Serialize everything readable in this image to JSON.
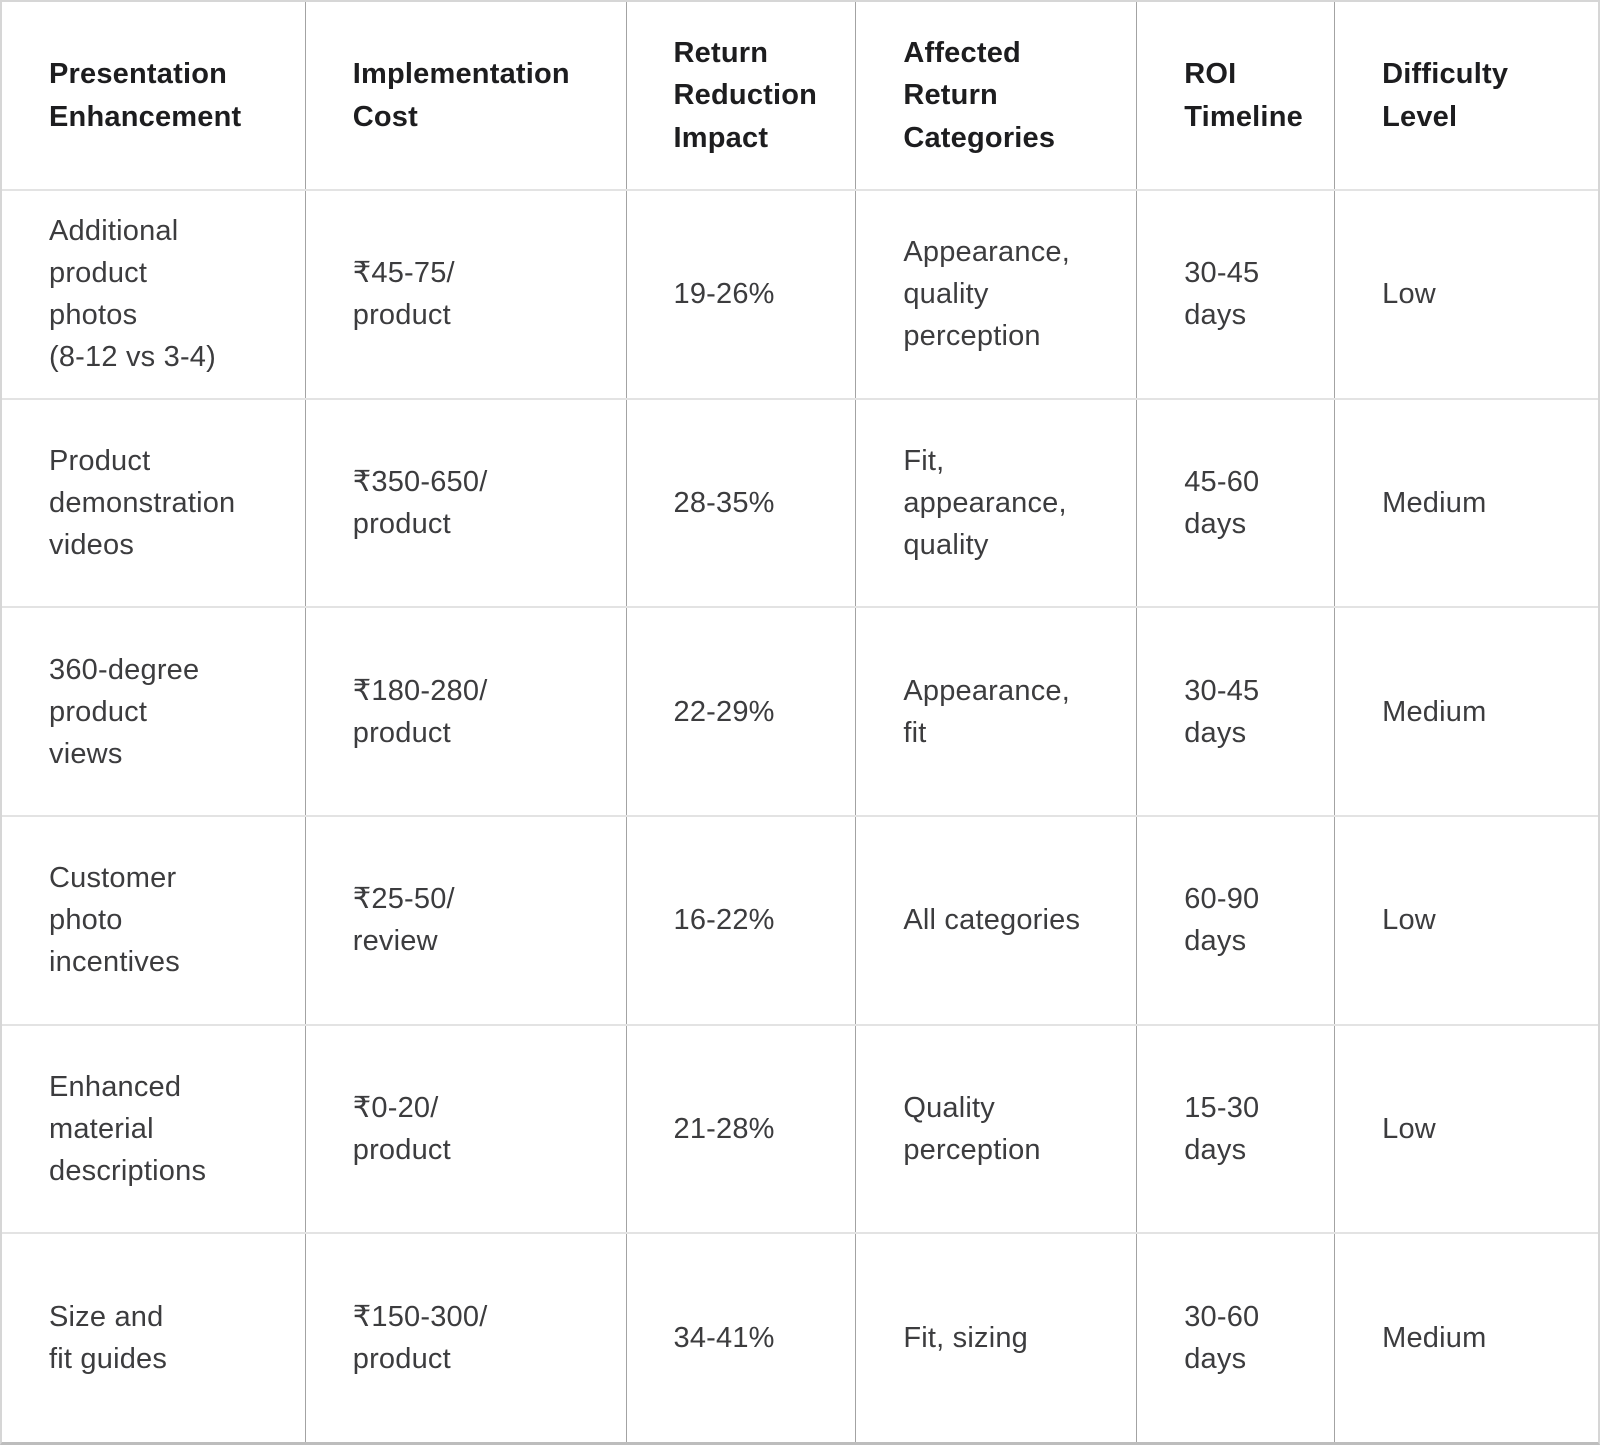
{
  "colors": {
    "background": "#ffffff",
    "header_text": "#1d1d1f",
    "body_text": "#3c3c3e",
    "vertical_border": "#a3a3a3",
    "horizontal_border": "#e3e3e3",
    "outer_border": "#d6d6d6"
  },
  "table": {
    "headers": [
      "Presentation\nEnhancement",
      "Implementation\nCost",
      "Return\nReduction\nImpact",
      "Affected\nReturn\nCategories",
      "ROI\nTimeline",
      "Difficulty\nLevel"
    ],
    "rows": [
      [
        "Additional\nproduct\nphotos\n(8-12 vs 3-4)",
        "₹45-75/\nproduct",
        "19-26%",
        "Appearance,\nquality\nperception",
        "30-45\ndays",
        "Low"
      ],
      [
        "Product\ndemonstration\nvideos",
        "₹350-650/\nproduct",
        "28-35%",
        "Fit,\nappearance,\nquality",
        "45-60\ndays",
        "Medium"
      ],
      [
        "360-degree\nproduct\nviews",
        "₹180-280/\nproduct",
        "22-29%",
        "Appearance,\nfit",
        "30-45\ndays",
        "Medium"
      ],
      [
        "Customer\nphoto\nincentives",
        "₹25-50/\nreview",
        "16-22%",
        "All categories",
        "60-90\ndays",
        "Low"
      ],
      [
        "Enhanced\nmaterial\ndescriptions",
        "₹0-20/\nproduct",
        "21-28%",
        "Quality\nperception",
        "15-30\ndays",
        "Low"
      ],
      [
        "Size and\nfit guides",
        "₹150-300/\nproduct",
        "34-41%",
        "Fit, sizing",
        "30-60\ndays",
        "Medium"
      ]
    ]
  },
  "chart_data": {
    "type": "table",
    "title": "",
    "columns": [
      "Presentation Enhancement",
      "Implementation Cost",
      "Return Reduction Impact",
      "Affected Return Categories",
      "ROI Timeline",
      "Difficulty Level"
    ],
    "rows": [
      [
        "Additional product photos (8-12 vs 3-4)",
        "₹45-75/product",
        "19-26%",
        "Appearance, quality perception",
        "30-45 days",
        "Low"
      ],
      [
        "Product demonstration videos",
        "₹350-650/product",
        "28-35%",
        "Fit, appearance, quality",
        "45-60 days",
        "Medium"
      ],
      [
        "360-degree product views",
        "₹180-280/product",
        "22-29%",
        "Appearance, fit",
        "30-45 days",
        "Medium"
      ],
      [
        "Customer photo incentives",
        "₹25-50/review",
        "16-22%",
        "All categories",
        "60-90 days",
        "Low"
      ],
      [
        "Enhanced material descriptions",
        "₹0-20/product",
        "21-28%",
        "Quality perception",
        "15-30 days",
        "Low"
      ],
      [
        "Size and fit guides",
        "₹150-300/product",
        "34-41%",
        "Fit, sizing",
        "30-60 days",
        "Medium"
      ]
    ]
  }
}
